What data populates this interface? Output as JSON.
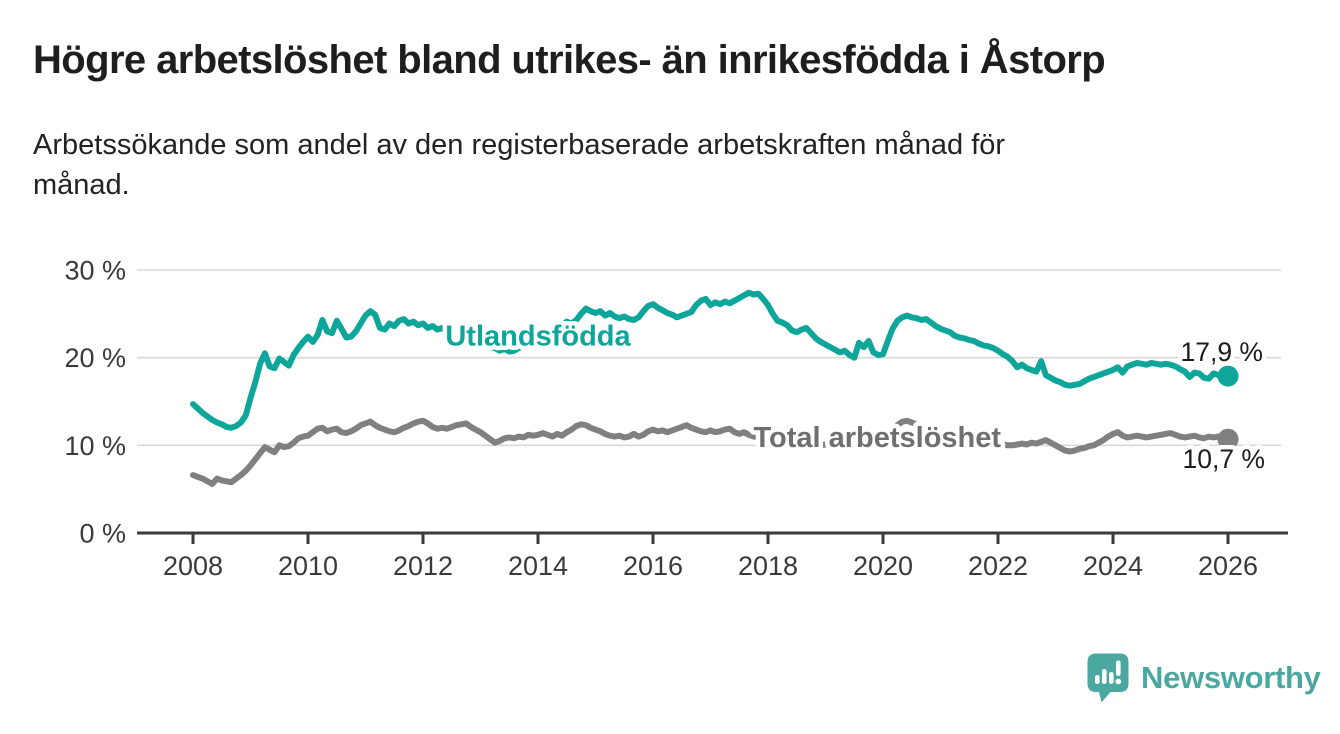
{
  "header": {
    "title": "Högre arbetslöshet bland utrikes- än inrikesfödda i Åstorp",
    "subtitle_lines": [
      "Arbetssökande som andel av den registerbaserade arbetskraften månad för",
      "månad."
    ]
  },
  "chart_data": {
    "type": "line",
    "title": "Högre arbetslöshet bland utrikes- än inrikesfödda i Åstorp",
    "subtitle": "Arbetssökande som andel av den registerbaserade arbetskraften månad för månad.",
    "unit": "%",
    "x_start_year": 2008,
    "points_per_year": 12,
    "grid": true,
    "legend": "inline-labels",
    "ylim": [
      0,
      30
    ],
    "x_axis": {
      "values": [
        2008,
        2010,
        2012,
        2014,
        2016,
        2018,
        2020,
        2022,
        2024,
        2026
      ],
      "labels": [
        "2008",
        "2010",
        "2012",
        "2014",
        "2016",
        "2018",
        "2020",
        "2022",
        "2024",
        "2026"
      ]
    },
    "y_axis": {
      "values": [
        0,
        10,
        20,
        30
      ],
      "labels": [
        "0 %",
        "10 %",
        "20 %",
        "30 %"
      ]
    },
    "series": [
      {
        "name": "Utlandsfödda",
        "color": "#0ea69b",
        "label_color": "#0ea69b",
        "end_label": "17,9 %",
        "end_value": 17.9,
        "label_at": {
          "year": 2014.0,
          "pct": 21.4
        },
        "values": [
          14.7,
          14.2,
          13.7,
          13.3,
          12.9,
          12.6,
          12.4,
          12.1,
          12.0,
          12.2,
          12.6,
          13.4,
          15.4,
          17.2,
          19.3,
          20.5,
          19.0,
          18.8,
          19.9,
          19.5,
          19.1,
          20.3,
          21.1,
          21.8,
          22.4,
          21.8,
          22.6,
          24.3,
          23.0,
          22.8,
          24.2,
          23.3,
          22.3,
          22.4,
          23.0,
          23.9,
          24.8,
          25.3,
          24.9,
          23.4,
          23.2,
          23.9,
          23.6,
          24.2,
          24.4,
          23.9,
          24.1,
          23.7,
          23.9,
          23.4,
          23.6,
          23.2,
          23.4,
          22.9,
          23.1,
          22.7,
          22.9,
          22.5,
          22.3,
          22.5,
          22.1,
          21.7,
          21.2,
          21.1,
          20.8,
          21.0,
          20.7,
          20.8,
          21.1,
          21.4,
          21.8,
          22.2,
          22.5,
          22.8,
          23.2,
          23.0,
          23.5,
          23.8,
          24.1,
          23.9,
          24.3,
          25.0,
          25.6,
          25.3,
          25.1,
          25.3,
          24.8,
          25.1,
          24.7,
          24.5,
          24.7,
          24.4,
          24.3,
          24.6,
          25.3,
          25.9,
          26.1,
          25.7,
          25.4,
          25.1,
          24.9,
          24.6,
          24.8,
          25.0,
          25.2,
          26.0,
          26.5,
          26.7,
          26.0,
          26.3,
          26.1,
          26.4,
          26.2,
          26.5,
          26.8,
          27.1,
          27.4,
          27.2,
          27.3,
          26.7,
          26.0,
          25.0,
          24.2,
          24.0,
          23.7,
          23.1,
          22.9,
          23.2,
          23.4,
          22.8,
          22.2,
          21.8,
          21.5,
          21.2,
          20.9,
          20.6,
          20.8,
          20.3,
          20.0,
          21.7,
          21.2,
          21.9,
          20.6,
          20.3,
          20.4,
          21.9,
          23.3,
          24.2,
          24.6,
          24.8,
          24.6,
          24.5,
          24.3,
          24.4,
          24.0,
          23.6,
          23.3,
          23.1,
          22.9,
          22.5,
          22.3,
          22.2,
          22.0,
          21.9,
          21.6,
          21.4,
          21.3,
          21.1,
          20.8,
          20.4,
          20.1,
          19.6,
          18.9,
          19.2,
          18.8,
          18.6,
          18.4,
          19.6,
          18.0,
          17.7,
          17.4,
          17.2,
          16.9,
          16.8,
          16.9,
          17.0,
          17.3,
          17.6,
          17.8,
          18.0,
          18.2,
          18.4,
          18.6,
          18.9,
          18.3,
          19.0,
          19.2,
          19.4,
          19.3,
          19.2,
          19.4,
          19.3,
          19.2,
          19.3,
          19.2,
          19.0,
          18.7,
          18.4,
          17.8,
          18.3,
          18.2,
          17.7,
          17.6,
          18.2,
          18.0,
          17.8,
          17.9
        ]
      },
      {
        "name": "Total arbetslöshet",
        "color": "#808080",
        "label_color": "#6f6f6f",
        "end_label": "10,7 %",
        "end_value": 10.7,
        "label_at": {
          "year": 2019.9,
          "pct": 9.8
        },
        "values": [
          6.6,
          6.4,
          6.2,
          5.9,
          5.6,
          6.2,
          6.0,
          5.9,
          5.8,
          6.2,
          6.6,
          7.1,
          7.7,
          8.4,
          9.1,
          9.8,
          9.5,
          9.2,
          10.0,
          9.8,
          9.9,
          10.3,
          10.8,
          11.0,
          11.1,
          11.5,
          11.9,
          12.0,
          11.6,
          11.8,
          11.9,
          11.5,
          11.4,
          11.6,
          11.9,
          12.3,
          12.5,
          12.7,
          12.3,
          12.0,
          11.8,
          11.6,
          11.5,
          11.7,
          12.0,
          12.2,
          12.5,
          12.7,
          12.8,
          12.5,
          12.1,
          11.9,
          12.0,
          11.9,
          12.1,
          12.3,
          12.4,
          12.5,
          12.1,
          11.8,
          11.5,
          11.1,
          10.7,
          10.3,
          10.5,
          10.8,
          10.9,
          10.8,
          11.0,
          10.9,
          11.2,
          11.1,
          11.2,
          11.4,
          11.2,
          11.0,
          11.3,
          11.1,
          11.5,
          11.8,
          12.2,
          12.4,
          12.3,
          12.0,
          11.8,
          11.6,
          11.3,
          11.1,
          11.0,
          11.1,
          10.9,
          11.0,
          11.3,
          11.0,
          11.2,
          11.6,
          11.8,
          11.6,
          11.7,
          11.5,
          11.7,
          11.9,
          12.1,
          12.3,
          12.0,
          11.8,
          11.6,
          11.5,
          11.7,
          11.5,
          11.6,
          11.8,
          11.9,
          11.5,
          11.3,
          11.5,
          11.2,
          11.0,
          10.9,
          11.0,
          10.8,
          10.7,
          10.5,
          10.4,
          10.5,
          10.3,
          10.2,
          10.4,
          10.3,
          10.1,
          10.2,
          10.0,
          10.1,
          10.0,
          9.9,
          10.0,
          9.8,
          9.9,
          10.1,
          10.2,
          10.0,
          10.1,
          10.0,
          10.2,
          10.4,
          10.8,
          11.6,
          12.3,
          12.7,
          12.8,
          12.6,
          12.4,
          12.2,
          12.0,
          11.8,
          11.6,
          11.5,
          11.3,
          11.2,
          11.0,
          10.9,
          10.8,
          10.7,
          10.6,
          10.5,
          10.4,
          10.3,
          10.3,
          10.2,
          10.1,
          10.0,
          10.0,
          10.1,
          10.2,
          10.1,
          10.3,
          10.2,
          10.4,
          10.6,
          10.3,
          10.0,
          9.7,
          9.4,
          9.3,
          9.4,
          9.6,
          9.7,
          9.9,
          10.0,
          10.3,
          10.6,
          11.0,
          11.3,
          11.5,
          11.1,
          10.9,
          11.0,
          11.1,
          11.0,
          10.9,
          11.0,
          11.1,
          11.2,
          11.3,
          11.4,
          11.2,
          11.0,
          10.9,
          11.0,
          11.1,
          10.9,
          10.8,
          11.0,
          10.9,
          11.0,
          10.8,
          10.7
        ]
      }
    ],
    "colors": {
      "accent_teal": "#0ea69b",
      "series_gray": "#808080",
      "grid": "#d8d8d8",
      "axis": "#3a3a3a",
      "text": "#1c1c1c"
    }
  },
  "footer": {
    "brand": "Newsworthy",
    "brand_color": "#4ba8a1"
  }
}
